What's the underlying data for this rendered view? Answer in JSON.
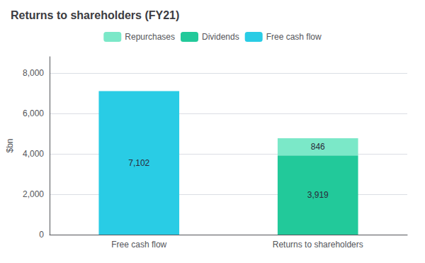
{
  "chart_data": {
    "type": "bar",
    "title": "Returns to shareholders (FY21)",
    "ylabel": "$bn",
    "categories": [
      "Free cash flow",
      "Returns to shareholders"
    ],
    "series": [
      {
        "name": "Free cash flow",
        "color": "#29cce5",
        "values": [
          7102,
          null
        ],
        "value_labels": [
          "7,102",
          null
        ]
      },
      {
        "name": "Dividends",
        "color": "#22c99a",
        "values": [
          null,
          3919
        ],
        "value_labels": [
          null,
          "3,919"
        ]
      },
      {
        "name": "Repurchases",
        "color": "#7be8c8",
        "values": [
          null,
          846
        ],
        "value_labels": [
          null,
          "846"
        ]
      }
    ],
    "stacked": true,
    "data_labels": true,
    "ylim": [
      0,
      8800
    ],
    "yticks": [
      0,
      {
        "value": 2000,
        "label": "2,000"
      },
      {
        "value": 4000,
        "label": "4,000"
      },
      {
        "value": 6000,
        "label": "6,000"
      },
      {
        "value": 8000,
        "label": "8,000"
      }
    ],
    "grid": true,
    "legend": "upper center"
  }
}
